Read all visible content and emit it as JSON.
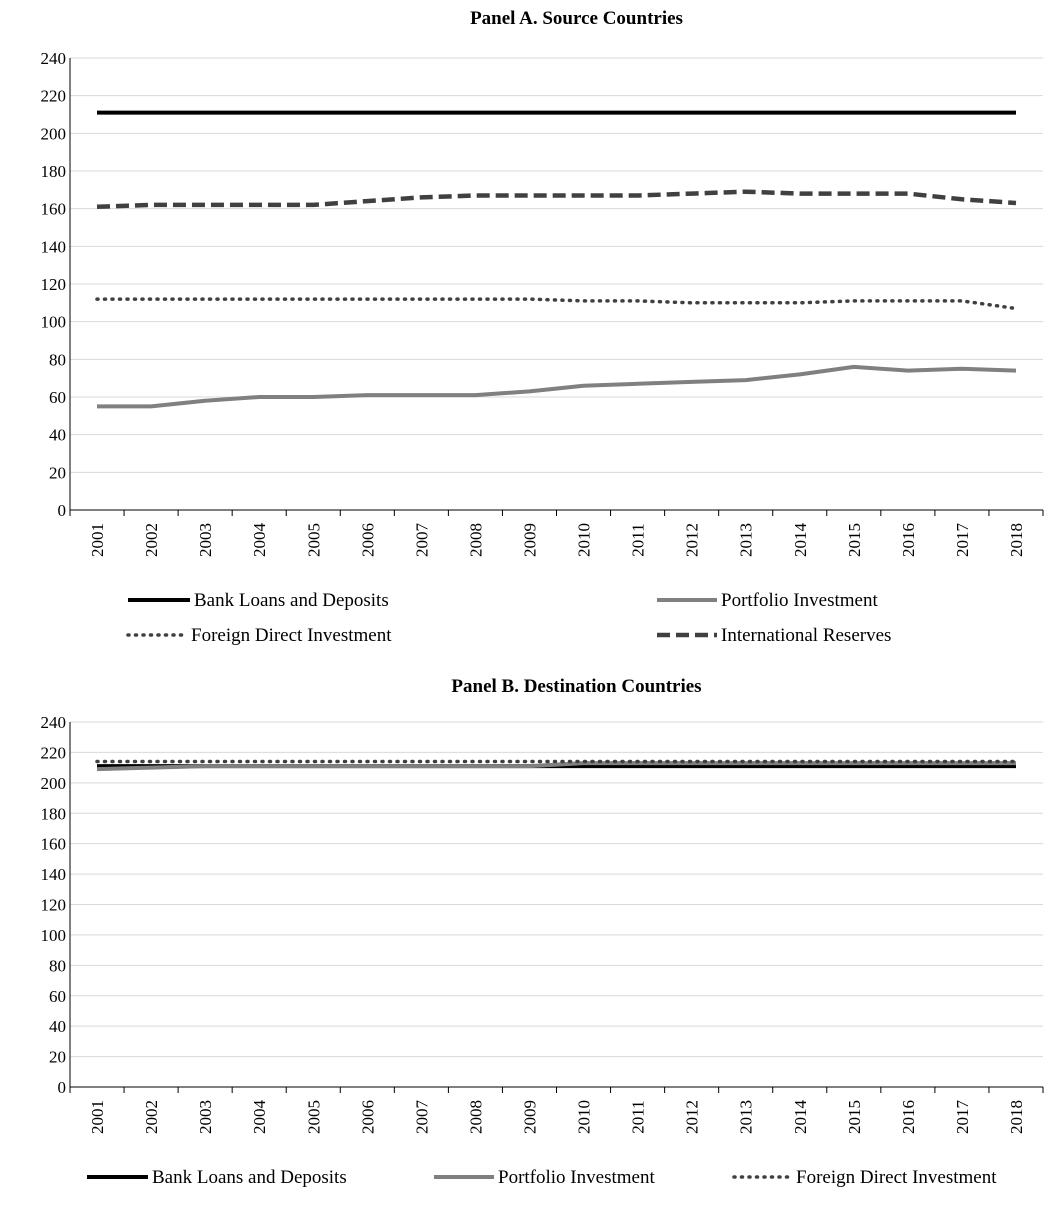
{
  "chart_data": [
    {
      "type": "line",
      "title": "Panel A. Source Countries",
      "xlabel": "",
      "ylabel": "",
      "x": [
        "2001",
        "2002",
        "2003",
        "2004",
        "2005",
        "2006",
        "2007",
        "2008",
        "2009",
        "2010",
        "2011",
        "2012",
        "2013",
        "2014",
        "2015",
        "2016",
        "2017",
        "2018"
      ],
      "yticks": [
        0,
        20,
        40,
        60,
        80,
        100,
        120,
        140,
        160,
        180,
        200,
        220,
        240
      ],
      "ylim": [
        0,
        240
      ],
      "grid": true,
      "legend_position": "bottom",
      "series": [
        {
          "name": "Bank Loans and Deposits",
          "color": "#000000",
          "style": "solid",
          "width": 4,
          "values": [
            211,
            211,
            211,
            211,
            211,
            211,
            211,
            211,
            211,
            211,
            211,
            211,
            211,
            211,
            211,
            211,
            211,
            211
          ]
        },
        {
          "name": "Portfolio Investment",
          "color": "#808080",
          "style": "solid",
          "width": 4,
          "values": [
            55,
            55,
            58,
            60,
            60,
            61,
            61,
            61,
            63,
            66,
            67,
            68,
            69,
            72,
            76,
            74,
            75,
            74
          ]
        },
        {
          "name": "Foreign Direct Investment",
          "color": "#404040",
          "style": "dotted",
          "width": 3.5,
          "values": [
            112,
            112,
            112,
            112,
            112,
            112,
            112,
            112,
            112,
            111,
            111,
            110,
            110,
            110,
            111,
            111,
            111,
            107
          ]
        },
        {
          "name": "International Reserves",
          "color": "#404040",
          "style": "dashed",
          "width": 4.5,
          "values": [
            161,
            162,
            162,
            162,
            162,
            164,
            166,
            167,
            167,
            167,
            167,
            168,
            169,
            168,
            168,
            168,
            165,
            163
          ]
        }
      ]
    },
    {
      "type": "line",
      "title": "Panel B. Destination Countries",
      "xlabel": "",
      "ylabel": "",
      "x": [
        "2001",
        "2002",
        "2003",
        "2004",
        "2005",
        "2006",
        "2007",
        "2008",
        "2009",
        "2010",
        "2011",
        "2012",
        "2013",
        "2014",
        "2015",
        "2016",
        "2017",
        "2018"
      ],
      "yticks": [
        0,
        20,
        40,
        60,
        80,
        100,
        120,
        140,
        160,
        180,
        200,
        220,
        240
      ],
      "ylim": [
        0,
        240
      ],
      "grid": true,
      "legend_position": "bottom",
      "series": [
        {
          "name": "Bank Loans and Deposits",
          "color": "#000000",
          "style": "solid",
          "width": 4,
          "values": [
            211,
            211,
            211,
            211,
            211,
            211,
            211,
            211,
            211,
            211,
            211,
            211,
            211,
            211,
            211,
            211,
            211,
            211
          ]
        },
        {
          "name": "Portfolio Investment",
          "color": "#808080",
          "style": "solid",
          "width": 4,
          "values": [
            209,
            210,
            211,
            211,
            211,
            211,
            211,
            211,
            211,
            213,
            213,
            213,
            213,
            213,
            213,
            213,
            213,
            213
          ]
        },
        {
          "name": "Foreign Direct Investment",
          "color": "#404040",
          "style": "dotted",
          "width": 3.5,
          "values": [
            214,
            214,
            214,
            214,
            214,
            214,
            214,
            214,
            214,
            214,
            214,
            214,
            214,
            214,
            214,
            214,
            214,
            214
          ]
        }
      ]
    }
  ]
}
